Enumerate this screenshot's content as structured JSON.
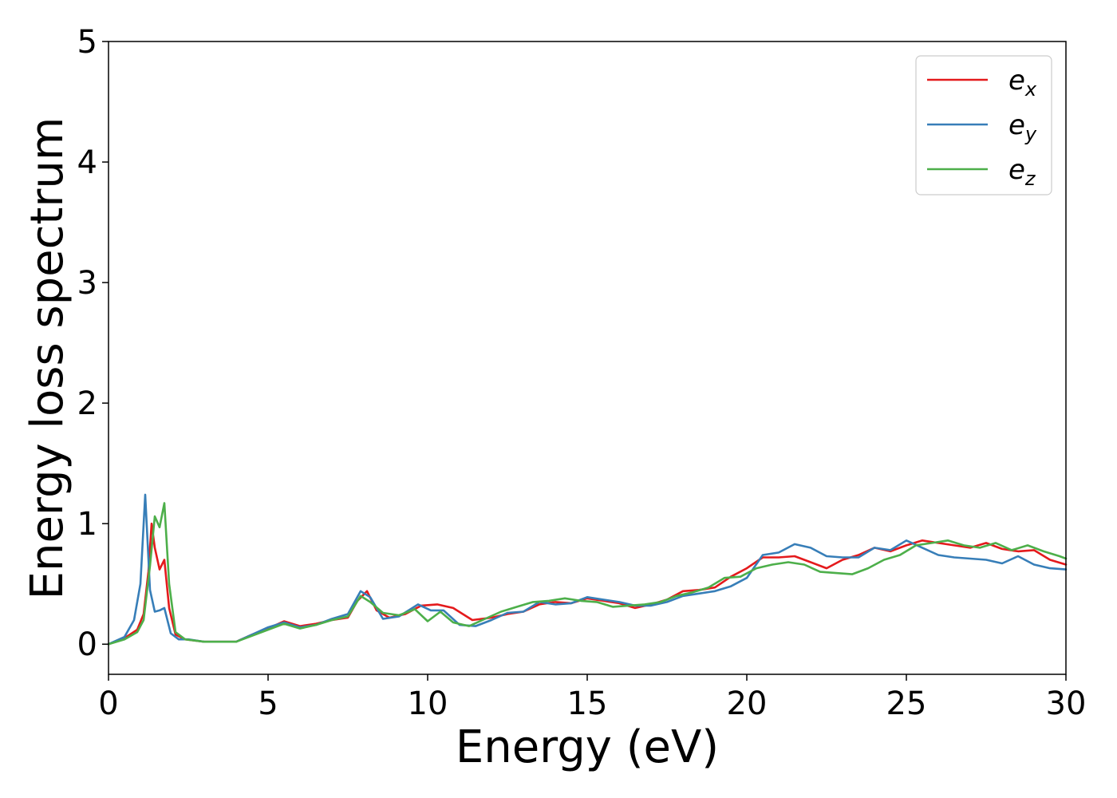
{
  "chart_data": {
    "type": "line",
    "xlabel": "Energy (eV)",
    "ylabel": "Energy loss spectrum",
    "xlim": [
      0,
      30
    ],
    "ylim": [
      -0.25,
      5
    ],
    "xticks": [
      "0",
      "5",
      "10",
      "15",
      "20",
      "25",
      "30"
    ],
    "yticks": [
      "0",
      "1",
      "2",
      "3",
      "4",
      "5"
    ],
    "grid": false,
    "legend_position": "top-right",
    "series": [
      {
        "name": "e",
        "subscript": "x",
        "color": "#e41a1c",
        "x": [
          0,
          0.5,
          0.9,
          1.1,
          1.25,
          1.35,
          1.45,
          1.6,
          1.75,
          1.9,
          2.1,
          2.4,
          3,
          4,
          4.5,
          5,
          5.5,
          6,
          6.5,
          7,
          7.5,
          7.8,
          8.1,
          8.4,
          8.8,
          9.3,
          9.8,
          10.3,
          10.8,
          11.4,
          12,
          12.5,
          13,
          13.5,
          14,
          14.5,
          15,
          15.5,
          16,
          16.5,
          17,
          17.5,
          18,
          18.5,
          19,
          19.5,
          20,
          20.5,
          21,
          21.5,
          22,
          22.5,
          23,
          23.5,
          24,
          24.5,
          25,
          25.5,
          26,
          26.5,
          27,
          27.5,
          28,
          28.5,
          29,
          29.5,
          30
        ],
        "y": [
          0,
          0.05,
          0.12,
          0.25,
          0.6,
          1.0,
          0.8,
          0.62,
          0.7,
          0.3,
          0.08,
          0.04,
          0.02,
          0.02,
          0.08,
          0.13,
          0.19,
          0.15,
          0.17,
          0.2,
          0.22,
          0.36,
          0.44,
          0.28,
          0.22,
          0.25,
          0.32,
          0.33,
          0.3,
          0.2,
          0.22,
          0.25,
          0.27,
          0.33,
          0.35,
          0.34,
          0.38,
          0.36,
          0.34,
          0.3,
          0.33,
          0.37,
          0.44,
          0.45,
          0.47,
          0.56,
          0.63,
          0.72,
          0.72,
          0.73,
          0.68,
          0.63,
          0.7,
          0.74,
          0.8,
          0.77,
          0.82,
          0.86,
          0.84,
          0.82,
          0.8,
          0.84,
          0.79,
          0.77,
          0.78,
          0.7,
          0.66
        ]
      },
      {
        "name": "e",
        "subscript": "y",
        "color": "#377eb8",
        "x": [
          0,
          0.5,
          0.8,
          1.0,
          1.15,
          1.3,
          1.45,
          1.6,
          1.75,
          1.95,
          2.2,
          2.5,
          3,
          4,
          4.5,
          5,
          5.5,
          6,
          6.5,
          7,
          7.5,
          7.9,
          8.2,
          8.6,
          9.1,
          9.7,
          10.1,
          10.5,
          11,
          11.5,
          12,
          12.5,
          13,
          13.5,
          14,
          14.5,
          15,
          15.5,
          16,
          16.5,
          17,
          17.5,
          18,
          18.5,
          19,
          19.5,
          20,
          20.5,
          21,
          21.5,
          22,
          22.5,
          23,
          23.5,
          24,
          24.5,
          25,
          25.5,
          26,
          26.5,
          27,
          27.5,
          28,
          28.5,
          29,
          29.5,
          30
        ],
        "y": [
          0,
          0.06,
          0.2,
          0.5,
          1.24,
          0.45,
          0.27,
          0.28,
          0.3,
          0.09,
          0.04,
          0.04,
          0.02,
          0.02,
          0.08,
          0.14,
          0.18,
          0.14,
          0.16,
          0.21,
          0.25,
          0.44,
          0.39,
          0.21,
          0.23,
          0.33,
          0.28,
          0.28,
          0.16,
          0.15,
          0.2,
          0.26,
          0.27,
          0.35,
          0.33,
          0.34,
          0.39,
          0.37,
          0.35,
          0.32,
          0.32,
          0.35,
          0.4,
          0.42,
          0.44,
          0.48,
          0.55,
          0.74,
          0.76,
          0.83,
          0.8,
          0.73,
          0.72,
          0.72,
          0.8,
          0.78,
          0.86,
          0.8,
          0.74,
          0.72,
          0.71,
          0.7,
          0.67,
          0.73,
          0.66,
          0.63,
          0.62
        ]
      },
      {
        "name": "e",
        "subscript": "z",
        "color": "#4daf4a",
        "x": [
          0,
          0.5,
          0.9,
          1.1,
          1.3,
          1.45,
          1.6,
          1.75,
          1.9,
          2.1,
          2.4,
          3,
          4,
          4.5,
          5,
          5.5,
          6,
          6.5,
          7,
          7.5,
          7.9,
          8.2,
          8.6,
          9.1,
          9.6,
          10.0,
          10.4,
          10.8,
          11.3,
          11.8,
          12.3,
          12.8,
          13.3,
          13.8,
          14.3,
          14.8,
          15.3,
          15.8,
          16.3,
          16.8,
          17.3,
          17.8,
          18.3,
          18.8,
          19.3,
          19.8,
          20.3,
          20.8,
          21.3,
          21.8,
          22.3,
          22.8,
          23.3,
          23.8,
          24.3,
          24.8,
          25.3,
          25.8,
          26.3,
          26.8,
          27.3,
          27.8,
          28.3,
          28.8,
          29.3,
          29.8,
          30
        ],
        "y": [
          0,
          0.04,
          0.1,
          0.2,
          0.65,
          1.06,
          0.97,
          1.17,
          0.5,
          0.1,
          0.04,
          0.02,
          0.02,
          0.07,
          0.12,
          0.17,
          0.13,
          0.16,
          0.2,
          0.23,
          0.4,
          0.35,
          0.26,
          0.24,
          0.29,
          0.19,
          0.27,
          0.18,
          0.15,
          0.21,
          0.27,
          0.31,
          0.35,
          0.36,
          0.38,
          0.36,
          0.35,
          0.31,
          0.32,
          0.33,
          0.35,
          0.4,
          0.43,
          0.47,
          0.55,
          0.56,
          0.63,
          0.66,
          0.68,
          0.66,
          0.6,
          0.59,
          0.58,
          0.63,
          0.7,
          0.74,
          0.82,
          0.84,
          0.86,
          0.82,
          0.8,
          0.84,
          0.78,
          0.82,
          0.77,
          0.73,
          0.71
        ]
      }
    ]
  }
}
